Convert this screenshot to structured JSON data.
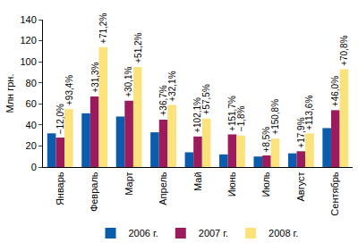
{
  "chart_data": {
    "type": "bar",
    "y_label": "Млн грн.",
    "categories": [
      "Январь",
      "Февраль",
      "Март",
      "Апрель",
      "Май",
      "Июнь",
      "Июль",
      "Август",
      "Сентябрь"
    ],
    "series": [
      {
        "name": "2006 г.",
        "color": "#0b5cad",
        "values": [
          32,
          51,
          48,
          33,
          14,
          12,
          10,
          13,
          37
        ]
      },
      {
        "name": "2007 г.",
        "color": "#9b1b5c",
        "values": [
          28,
          67,
          63,
          45,
          29,
          31,
          11,
          15,
          54
        ]
      },
      {
        "name": "2008 г.",
        "color": "#fbe27a",
        "values": [
          55,
          114,
          95,
          59,
          46,
          30,
          27,
          32,
          93
        ]
      }
    ],
    "annotations": [
      {
        "category": "Январь",
        "series": "2007 г.",
        "text": "−12,0%"
      },
      {
        "category": "Январь",
        "series": "2008 г.",
        "text": "+93,4%"
      },
      {
        "category": "Февраль",
        "series": "2007 г.",
        "text": "+31,3%"
      },
      {
        "category": "Февраль",
        "series": "2008 г.",
        "text": "+71,2%"
      },
      {
        "category": "Март",
        "series": "2007 г.",
        "text": "+30,1%"
      },
      {
        "category": "Март",
        "series": "2008 г.",
        "text": "+51,2%"
      },
      {
        "category": "Апрель",
        "series": "2007 г.",
        "text": "+36,7%"
      },
      {
        "category": "Апрель",
        "series": "2008 г.",
        "text": "+32,1%"
      },
      {
        "category": "Май",
        "series": "2007 г.",
        "text": "+102,1%"
      },
      {
        "category": "Май",
        "series": "2008 г.",
        "text": "+57,5%"
      },
      {
        "category": "Июнь",
        "series": "2007 г.",
        "text": "+151,7%"
      },
      {
        "category": "Июнь",
        "series": "2008 г.",
        "text": "−1,8%"
      },
      {
        "category": "Июль",
        "series": "2007 г.",
        "text": "+8,5%"
      },
      {
        "category": "Июль",
        "series": "2008 г.",
        "text": "+150,8%"
      },
      {
        "category": "Август",
        "series": "2007 г.",
        "text": "+17,9%"
      },
      {
        "category": "Август",
        "series": "2008 г.",
        "text": "+113,6%"
      },
      {
        "category": "Сентябрь",
        "series": "2007 г.",
        "text": "+46,0%"
      },
      {
        "category": "Сентябрь",
        "series": "2008 г.",
        "text": "+70,8%"
      }
    ],
    "ylim": [
      0,
      140
    ],
    "yticks": [
      0,
      20,
      40,
      60,
      80,
      100,
      120,
      140
    ],
    "grid": false,
    "legend": "bottom"
  }
}
